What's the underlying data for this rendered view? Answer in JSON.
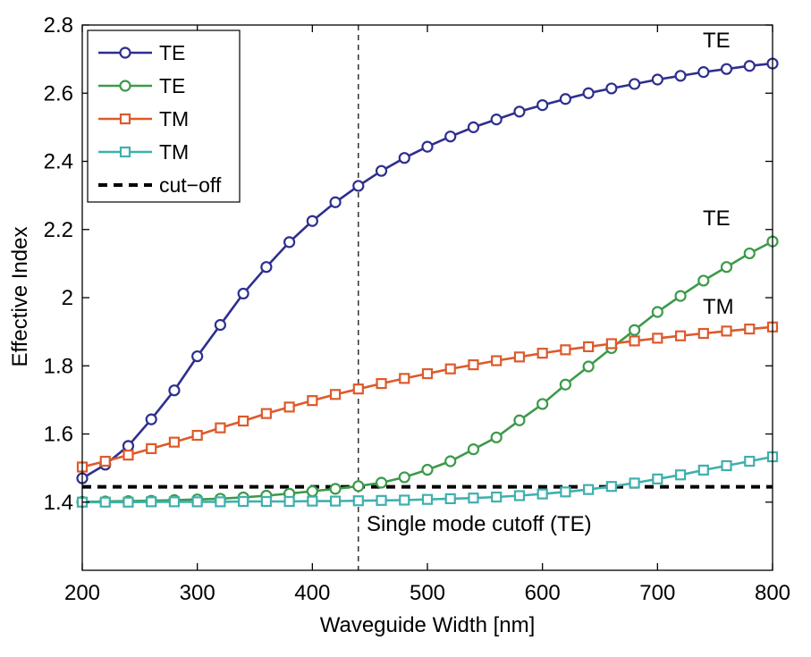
{
  "chart_data": {
    "type": "line",
    "xlabel": "Waveguide Width [nm]",
    "ylabel": "Effective Index",
    "xlim": [
      200,
      800
    ],
    "ylim": [
      1.2,
      2.8
    ],
    "xticks": [
      200,
      300,
      400,
      500,
      600,
      700,
      800
    ],
    "yticks": [
      1.4,
      1.6,
      1.8,
      2,
      2.2,
      2.4,
      2.6,
      2.8
    ],
    "ytick_labels": [
      "1.4",
      "1.6",
      "1.8",
      "2",
      "2.2",
      "2.4",
      "2.6",
      "2.8"
    ],
    "x": [
      200,
      220,
      240,
      260,
      280,
      300,
      320,
      340,
      360,
      380,
      400,
      420,
      440,
      460,
      480,
      500,
      520,
      540,
      560,
      580,
      600,
      620,
      640,
      660,
      680,
      700,
      720,
      740,
      760,
      780,
      800
    ],
    "series": [
      {
        "name": "TE",
        "color": "#2e2f8f",
        "marker": "circle",
        "values": [
          1.47,
          1.51,
          1.565,
          1.643,
          1.728,
          1.828,
          1.92,
          2.012,
          2.09,
          2.163,
          2.225,
          2.28,
          2.328,
          2.372,
          2.41,
          2.443,
          2.473,
          2.5,
          2.523,
          2.546,
          2.565,
          2.583,
          2.6,
          2.614,
          2.627,
          2.64,
          2.651,
          2.662,
          2.671,
          2.68,
          2.687
        ]
      },
      {
        "name": "TE",
        "color": "#3c9a4a",
        "marker": "circle",
        "values": [
          1.401,
          1.402,
          1.403,
          1.404,
          1.406,
          1.408,
          1.41,
          1.414,
          1.419,
          1.425,
          1.432,
          1.439,
          1.447,
          1.457,
          1.473,
          1.495,
          1.52,
          1.555,
          1.59,
          1.64,
          1.688,
          1.745,
          1.798,
          1.852,
          1.905,
          1.958,
          2.005,
          2.05,
          2.09,
          2.13,
          2.165
        ]
      },
      {
        "name": "TM",
        "color": "#dd5a2b",
        "marker": "square",
        "values": [
          1.503,
          1.52,
          1.538,
          1.557,
          1.576,
          1.596,
          1.618,
          1.638,
          1.66,
          1.679,
          1.698,
          1.716,
          1.732,
          1.748,
          1.763,
          1.777,
          1.791,
          1.803,
          1.815,
          1.826,
          1.837,
          1.847,
          1.856,
          1.865,
          1.873,
          1.881,
          1.888,
          1.895,
          1.902,
          1.908,
          1.914
        ]
      },
      {
        "name": "TM",
        "color": "#3fb0ad",
        "marker": "square",
        "values": [
          1.4,
          1.4,
          1.4,
          1.401,
          1.401,
          1.401,
          1.401,
          1.402,
          1.402,
          1.402,
          1.403,
          1.403,
          1.404,
          1.405,
          1.406,
          1.408,
          1.41,
          1.412,
          1.415,
          1.419,
          1.424,
          1.43,
          1.437,
          1.446,
          1.456,
          1.468,
          1.48,
          1.494,
          1.507,
          1.52,
          1.533
        ]
      }
    ],
    "cutoff": {
      "name": "cut−off",
      "y": 1.445,
      "color": "#000000"
    },
    "vline": {
      "x": 440,
      "label": "Single mode cutoff (TE)"
    },
    "curve_labels": [
      {
        "text": "TE",
        "x": 800,
        "y": 2.687
      },
      {
        "text": "TE",
        "x": 800,
        "y": 2.165
      },
      {
        "text": "TM",
        "x": 800,
        "y": 1.914
      }
    ],
    "legend": {
      "position": "top-left",
      "entries": [
        "TE",
        "TE",
        "TM",
        "TM",
        "cut−off"
      ]
    },
    "grid": false
  }
}
